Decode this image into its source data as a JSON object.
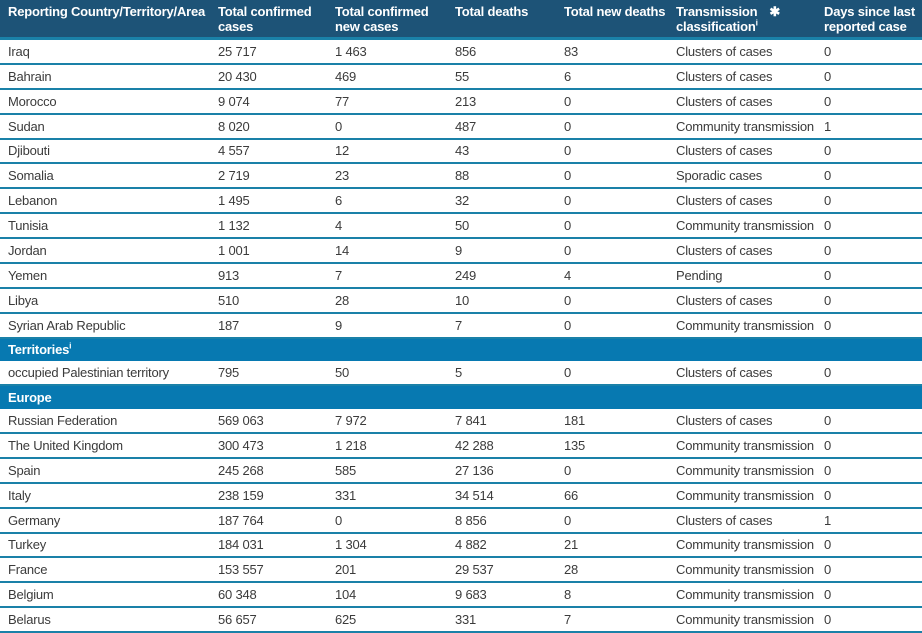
{
  "colors": {
    "header_bg": "#1d5377",
    "band_bg": "#0779b1",
    "separator": "#1a81a8",
    "text": "#3b3b3b",
    "header_text": "#ffffff"
  },
  "table": {
    "header": {
      "col_country": "Reporting Country/Territory/Area",
      "col_total_cases": "Total confirmed cases",
      "col_new_cases": "Total confirmed new cases",
      "col_deaths": "Total deaths",
      "col_new_deaths": "Total new deaths",
      "col_transmission_line1": "Transmission",
      "col_transmission_star": "✱",
      "col_transmission_line2": "classification",
      "col_transmission_sup": "i",
      "col_days": "Days since last reported case"
    },
    "rows": [
      {
        "type": "data",
        "country": "Iraq",
        "total_cases": "25 717",
        "new_cases": "1 463",
        "deaths": "856",
        "new_deaths": "83",
        "classification": "Clusters of cases",
        "days": "0"
      },
      {
        "type": "data",
        "country": "Bahrain",
        "total_cases": "20 430",
        "new_cases": "469",
        "deaths": "55",
        "new_deaths": "6",
        "classification": "Clusters of cases",
        "days": "0"
      },
      {
        "type": "data",
        "country": "Morocco",
        "total_cases": "9 074",
        "new_cases": "77",
        "deaths": "213",
        "new_deaths": "0",
        "classification": "Clusters of cases",
        "days": "0"
      },
      {
        "type": "data",
        "country": "Sudan",
        "total_cases": "8 020",
        "new_cases": "0",
        "deaths": "487",
        "new_deaths": "0",
        "classification": "Community transmission",
        "days": "1"
      },
      {
        "type": "data",
        "country": "Djibouti",
        "total_cases": "4 557",
        "new_cases": "12",
        "deaths": "43",
        "new_deaths": "0",
        "classification": "Clusters of cases",
        "days": "0"
      },
      {
        "type": "data",
        "country": "Somalia",
        "total_cases": "2 719",
        "new_cases": "23",
        "deaths": "88",
        "new_deaths": "0",
        "classification": "Sporadic cases",
        "days": "0"
      },
      {
        "type": "data",
        "country": "Lebanon",
        "total_cases": "1 495",
        "new_cases": "6",
        "deaths": "32",
        "new_deaths": "0",
        "classification": "Clusters of cases",
        "days": "0"
      },
      {
        "type": "data",
        "country": "Tunisia",
        "total_cases": "1 132",
        "new_cases": "4",
        "deaths": "50",
        "new_deaths": "0",
        "classification": "Community transmission",
        "days": "0"
      },
      {
        "type": "data",
        "country": "Jordan",
        "total_cases": "1 001",
        "new_cases": "14",
        "deaths": "9",
        "new_deaths": "0",
        "classification": "Clusters of cases",
        "days": "0"
      },
      {
        "type": "data",
        "country": "Yemen",
        "total_cases": "913",
        "new_cases": "7",
        "deaths": "249",
        "new_deaths": "4",
        "classification": "Pending",
        "days": "0"
      },
      {
        "type": "data",
        "country": "Libya",
        "total_cases": "510",
        "new_cases": "28",
        "deaths": "10",
        "new_deaths": "0",
        "classification": "Clusters of cases",
        "days": "0"
      },
      {
        "type": "data",
        "country": "Syrian Arab Republic",
        "total_cases": "187",
        "new_cases": "9",
        "deaths": "7",
        "new_deaths": "0",
        "classification": "Community transmission",
        "days": "0"
      },
      {
        "type": "section",
        "label": "Territories",
        "sup": "i"
      },
      {
        "type": "data",
        "country": "occupied Palestinian territory",
        "total_cases": "795",
        "new_cases": "50",
        "deaths": "5",
        "new_deaths": "0",
        "classification": "Clusters of cases",
        "days": "0"
      },
      {
        "type": "section",
        "label": "Europe",
        "sup": ""
      },
      {
        "type": "data",
        "country": "Russian Federation",
        "total_cases": "569 063",
        "new_cases": "7 972",
        "deaths": "7 841",
        "new_deaths": "181",
        "classification": "Clusters of cases",
        "days": "0"
      },
      {
        "type": "data",
        "country": "The United Kingdom",
        "total_cases": "300 473",
        "new_cases": "1 218",
        "deaths": "42 288",
        "new_deaths": "135",
        "classification": "Community transmission",
        "days": "0"
      },
      {
        "type": "data",
        "country": "Spain",
        "total_cases": "245 268",
        "new_cases": "585",
        "deaths": "27 136",
        "new_deaths": "0",
        "classification": "Community transmission",
        "days": "0"
      },
      {
        "type": "data",
        "country": "Italy",
        "total_cases": "238 159",
        "new_cases": "331",
        "deaths": "34 514",
        "new_deaths": "66",
        "classification": "Community transmission",
        "days": "0"
      },
      {
        "type": "data",
        "country": "Germany",
        "total_cases": "187 764",
        "new_cases": "0",
        "deaths": "8 856",
        "new_deaths": "0",
        "classification": "Clusters of cases",
        "days": "1"
      },
      {
        "type": "data",
        "country": "Turkey",
        "total_cases": "184 031",
        "new_cases": "1 304",
        "deaths": "4 882",
        "new_deaths": "21",
        "classification": "Community transmission",
        "days": "0"
      },
      {
        "type": "data",
        "country": "France",
        "total_cases": "153 557",
        "new_cases": "201",
        "deaths": "29 537",
        "new_deaths": "28",
        "classification": "Community transmission",
        "days": "0"
      },
      {
        "type": "data",
        "country": "Belgium",
        "total_cases": "60 348",
        "new_cases": "104",
        "deaths": "9 683",
        "new_deaths": "8",
        "classification": "Community transmission",
        "days": "0"
      },
      {
        "type": "data",
        "country": "Belarus",
        "total_cases": "56 657",
        "new_cases": "625",
        "deaths": "331",
        "new_deaths": "7",
        "classification": "Community transmission",
        "days": "0"
      }
    ]
  }
}
